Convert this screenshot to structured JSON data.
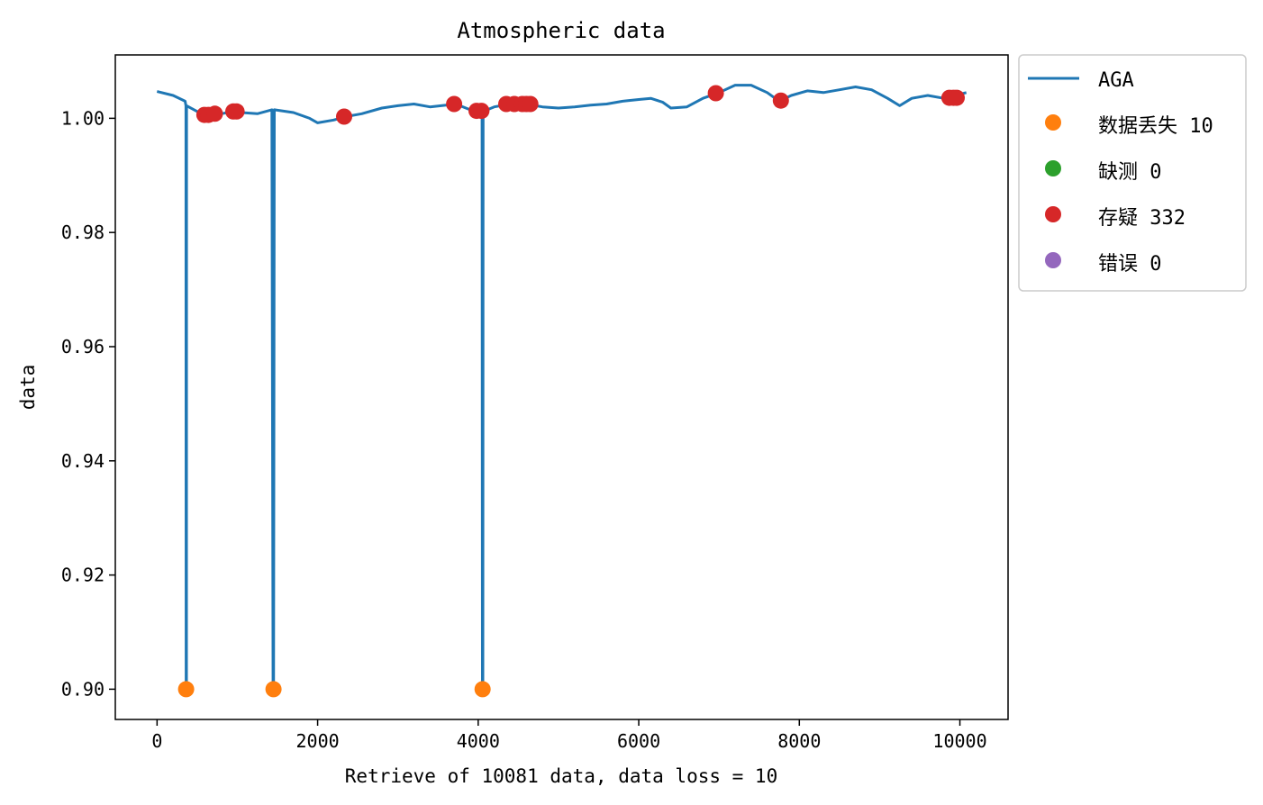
{
  "chart_data": {
    "type": "line",
    "title": "Atmospheric data",
    "xlabel": "Retrieve of 10081 data, data loss = 10",
    "ylabel": "data",
    "xlim": [
      -520,
      10600
    ],
    "ylim": [
      0.8947,
      1.0111
    ],
    "x_ticks": [
      0,
      2000,
      4000,
      6000,
      8000,
      10000
    ],
    "x_tick_labels": [
      "0",
      "2000",
      "4000",
      "6000",
      "8000",
      "10000"
    ],
    "y_ticks": [
      0.9,
      0.92,
      0.94,
      0.96,
      0.98,
      1.0
    ],
    "y_tick_labels": [
      "0.90",
      "0.92",
      "0.94",
      "0.96",
      "0.98",
      "1.00"
    ],
    "grid": false,
    "legend_position": "outside-top-right",
    "series": [
      {
        "name": "AGA",
        "kind": "line",
        "color": "#1f77b4",
        "points": [
          [
            0,
            1.0047
          ],
          [
            200,
            1.004
          ],
          [
            350,
            1.003
          ],
          [
            360,
            1.0022
          ],
          [
            362,
            0.9
          ],
          [
            366,
            0.9
          ],
          [
            368,
            1.0022
          ],
          [
            500,
            1.0012
          ],
          [
            650,
            1.0007
          ],
          [
            800,
            1.0008
          ],
          [
            950,
            1.0012
          ],
          [
            1050,
            1.001
          ],
          [
            1250,
            1.0008
          ],
          [
            1430,
            1.0015
          ],
          [
            1445,
            0.9
          ],
          [
            1452,
            0.9
          ],
          [
            1460,
            1.0015
          ],
          [
            1700,
            1.001
          ],
          [
            1900,
            1.0
          ],
          [
            2000,
            0.9992
          ],
          [
            2200,
            0.9997
          ],
          [
            2350,
            1.0003
          ],
          [
            2550,
            1.0008
          ],
          [
            2800,
            1.0018
          ],
          [
            3000,
            1.0022
          ],
          [
            3200,
            1.0025
          ],
          [
            3400,
            1.002
          ],
          [
            3600,
            1.0023
          ],
          [
            3720,
            1.0025
          ],
          [
            3900,
            1.0015
          ],
          [
            4020,
            1.001
          ],
          [
            4048,
            1.0012
          ],
          [
            4052,
            0.9
          ],
          [
            4058,
            0.9
          ],
          [
            4062,
            1.0012
          ],
          [
            4200,
            1.002
          ],
          [
            4400,
            1.0025
          ],
          [
            4600,
            1.0025
          ],
          [
            4800,
            1.002
          ],
          [
            5000,
            1.0018
          ],
          [
            5200,
            1.002
          ],
          [
            5400,
            1.0023
          ],
          [
            5600,
            1.0025
          ],
          [
            5800,
            1.003
          ],
          [
            6000,
            1.0033
          ],
          [
            6150,
            1.0035
          ],
          [
            6300,
            1.0028
          ],
          [
            6400,
            1.0018
          ],
          [
            6600,
            1.002
          ],
          [
            6800,
            1.0035
          ],
          [
            7000,
            1.0045
          ],
          [
            7200,
            1.0058
          ],
          [
            7400,
            1.0058
          ],
          [
            7600,
            1.0045
          ],
          [
            7750,
            1.003
          ],
          [
            7900,
            1.004
          ],
          [
            8100,
            1.0048
          ],
          [
            8300,
            1.0045
          ],
          [
            8500,
            1.005
          ],
          [
            8700,
            1.0055
          ],
          [
            8900,
            1.005
          ],
          [
            9100,
            1.0035
          ],
          [
            9250,
            1.0022
          ],
          [
            9400,
            1.0035
          ],
          [
            9600,
            1.004
          ],
          [
            9800,
            1.0035
          ],
          [
            10081,
            1.0045
          ]
        ]
      },
      {
        "name": "数据丢失 10",
        "kind": "marker",
        "color": "#ff7f0e",
        "points": [
          [
            362,
            0.9
          ],
          [
            1450,
            0.9
          ],
          [
            4055,
            0.9
          ]
        ]
      },
      {
        "name": "缺测 0",
        "kind": "marker",
        "color": "#2ca02c",
        "points": []
      },
      {
        "name": "存疑 332",
        "kind": "marker",
        "color": "#d62728",
        "points": [
          [
            590,
            1.0006
          ],
          [
            640,
            1.0006
          ],
          [
            720,
            1.0008
          ],
          [
            950,
            1.0012
          ],
          [
            990,
            1.0012
          ],
          [
            2330,
            1.0003
          ],
          [
            3700,
            1.0025
          ],
          [
            3980,
            1.0013
          ],
          [
            4040,
            1.0013
          ],
          [
            4350,
            1.0025
          ],
          [
            4450,
            1.0025
          ],
          [
            4550,
            1.0025
          ],
          [
            4600,
            1.0025
          ],
          [
            4650,
            1.0025
          ],
          [
            6960,
            1.0044
          ],
          [
            7770,
            1.0031
          ],
          [
            9870,
            1.0036
          ],
          [
            9920,
            1.0036
          ],
          [
            9960,
            1.0036
          ]
        ]
      },
      {
        "name": "错误 0",
        "kind": "marker",
        "color": "#9467bd",
        "points": []
      }
    ]
  }
}
